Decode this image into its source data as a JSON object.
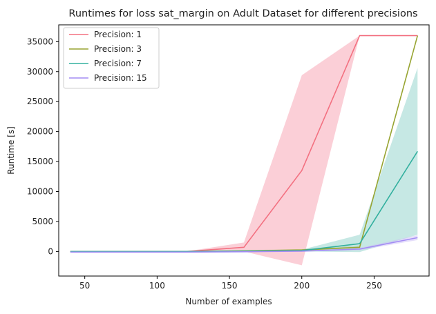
{
  "chart_data": {
    "type": "line",
    "title": "Runtimes for loss sat_margin on Adult Dataset for different precisions",
    "xlabel": "Number of examples",
    "ylabel": "Runtime [s]",
    "xlim": [
      32,
      288
    ],
    "ylim": [
      -4100,
      37800
    ],
    "xticks": [
      50,
      100,
      150,
      200,
      250
    ],
    "yticks": [
      0,
      5000,
      10000,
      15000,
      20000,
      25000,
      30000,
      35000
    ],
    "legend_position": "top-left",
    "grid": false,
    "x": [
      40,
      80,
      120,
      160,
      200,
      240,
      280
    ],
    "series": [
      {
        "name": "Precision: 1",
        "color": "#f37181",
        "band_color": "#f7a0b0",
        "values": [
          0,
          0,
          0,
          700,
          13500,
          36000,
          36000
        ],
        "lower": [
          0,
          0,
          0,
          0,
          -2300,
          36000,
          36000
        ],
        "upper": [
          0,
          0,
          0,
          1500,
          29400,
          36000,
          36000
        ]
      },
      {
        "name": "Precision: 3",
        "color": "#97a431",
        "band_color": "#c8cf8a",
        "values": [
          0,
          0,
          0,
          100,
          250,
          700,
          36000
        ],
        "lower": [
          0,
          0,
          0,
          0,
          100,
          400,
          36000
        ],
        "upper": [
          0,
          0,
          0,
          200,
          400,
          1000,
          36000
        ]
      },
      {
        "name": "Precision: 7",
        "color": "#33b09f",
        "band_color": "#8ed2c9",
        "values": [
          0,
          0,
          0,
          50,
          150,
          1300,
          16700
        ],
        "lower": [
          0,
          0,
          0,
          0,
          0,
          -100,
          2800
        ],
        "upper": [
          0,
          0,
          0,
          100,
          300,
          2800,
          30600
        ]
      },
      {
        "name": "Precision: 15",
        "color": "#a48cf4",
        "band_color": "#cbbef8",
        "values": [
          -100,
          -100,
          -100,
          -50,
          50,
          400,
          2300
        ],
        "lower": [
          -150,
          -150,
          -150,
          -100,
          0,
          200,
          1900
        ],
        "upper": [
          -50,
          -50,
          -50,
          0,
          100,
          600,
          2700
        ]
      }
    ]
  }
}
